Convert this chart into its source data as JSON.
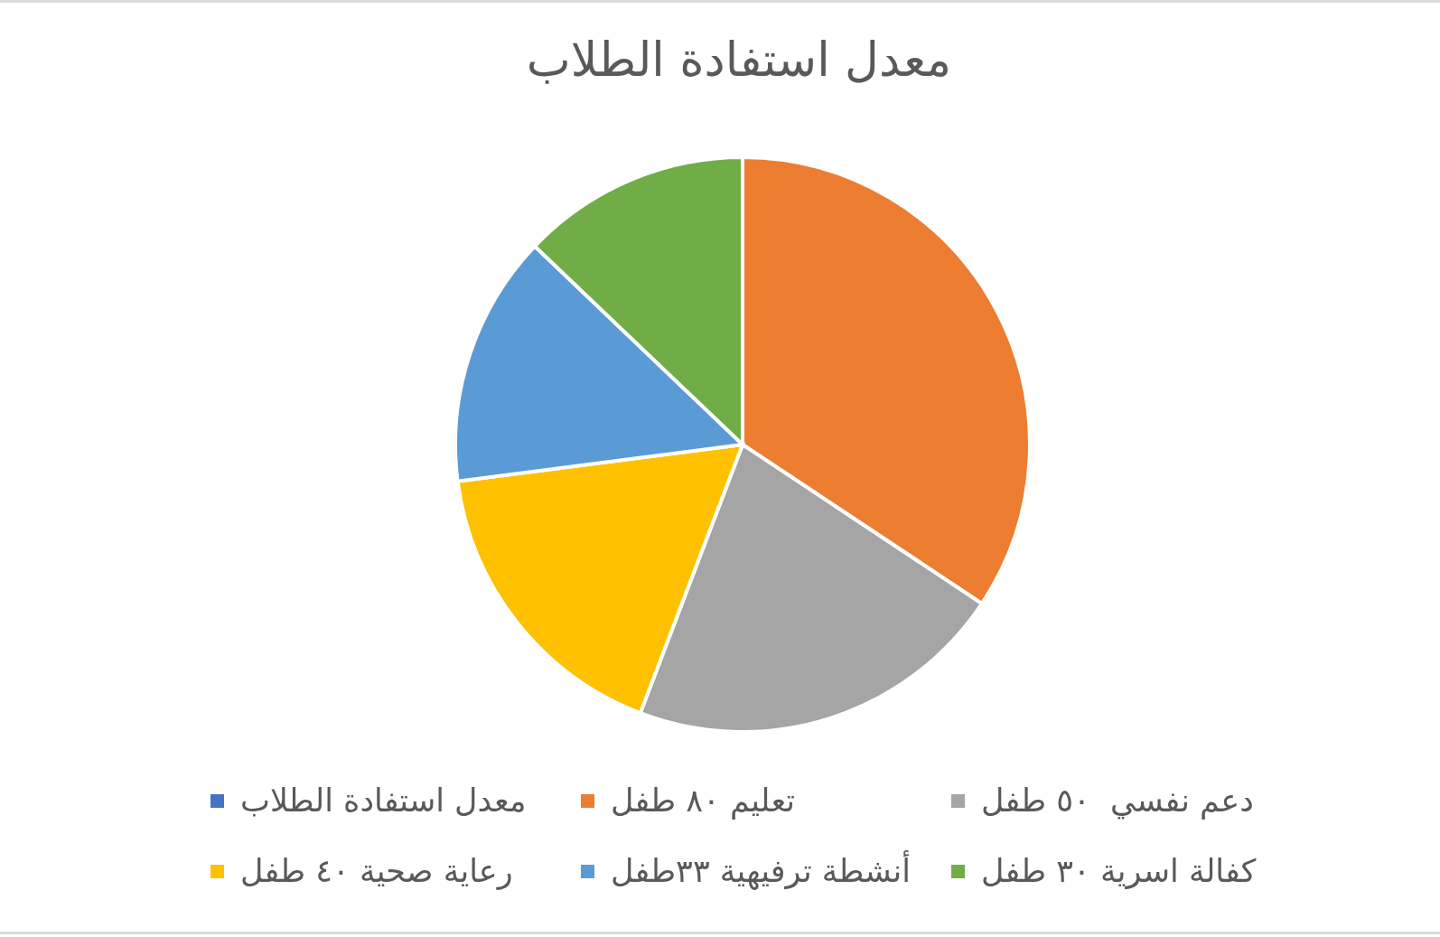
{
  "chart_data": {
    "type": "pie",
    "title": "معدل استفادة الطلاب",
    "categories": [
      "معدل استفادة الطلاب",
      "تعليم ٨٠ طفل",
      "دعم نفسي  ٥٠ طفل",
      "رعاية صحية ٤٠ طفل",
      "أنشطة ترفيهية ٣٣طفل",
      "كفالة اسرية ٣٠ طفل"
    ],
    "values": [
      null,
      80,
      50,
      40,
      33,
      30
    ],
    "colors": [
      "#4472c4",
      "#ed7d31",
      "#a5a5a5",
      "#ffc000",
      "#5b9bd5",
      "#70ad47"
    ],
    "legend": "bottom"
  }
}
